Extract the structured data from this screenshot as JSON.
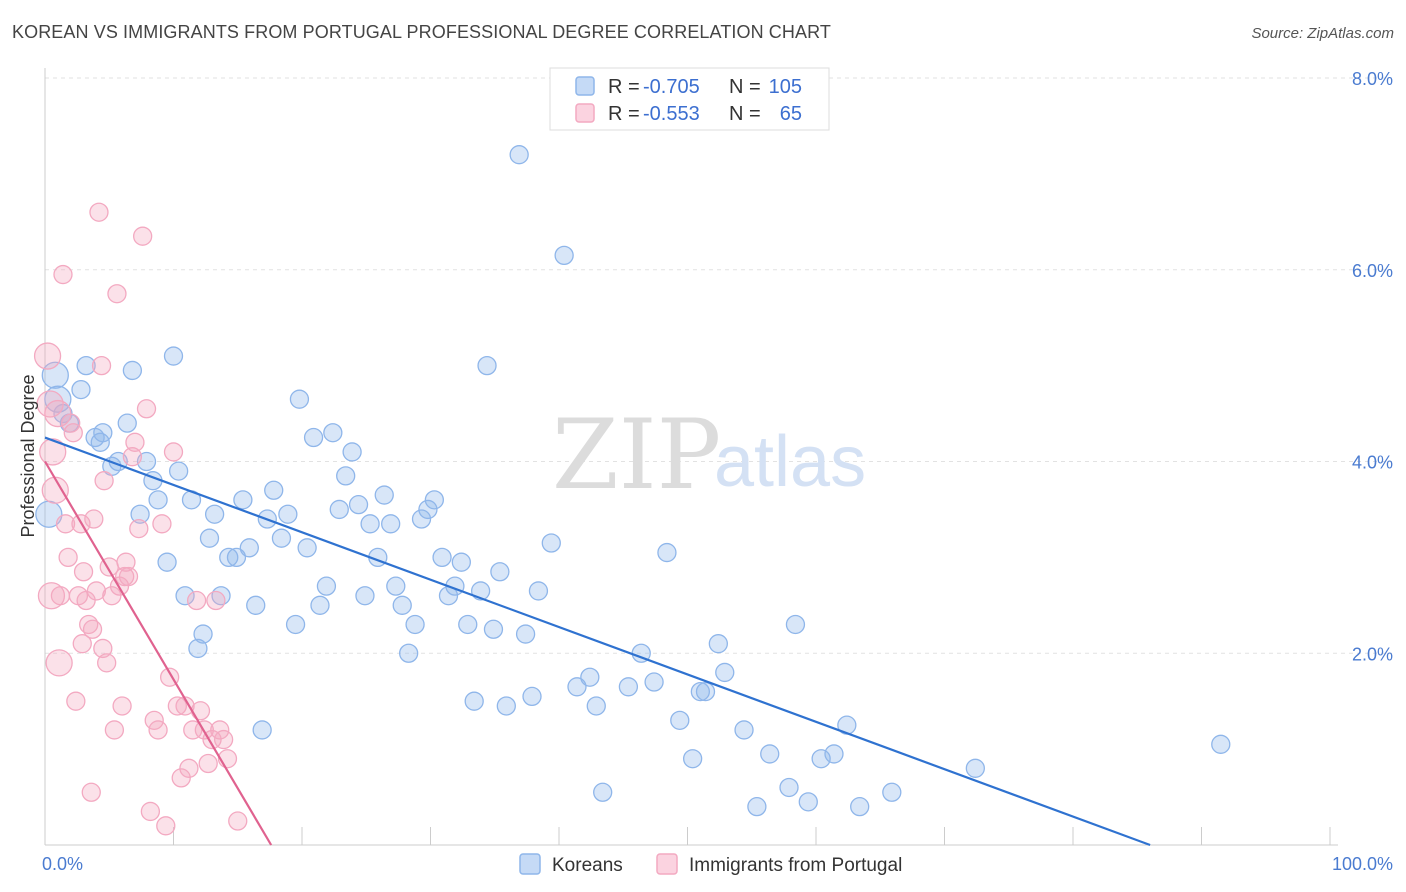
{
  "title": "KOREAN VS IMMIGRANTS FROM PORTUGAL PROFESSIONAL DEGREE CORRELATION CHART",
  "source": "Source: ZipAtlas.com",
  "watermark": {
    "zip": "ZIP",
    "atlas": "atlas"
  },
  "legend_stats": [
    {
      "r_label": "R = ",
      "r_value": "-0.705",
      "n_label": "N = ",
      "n_value": "105",
      "color": "#a9c8f0"
    },
    {
      "r_label": "R = ",
      "r_value": "-0.553",
      "n_label": "N = ",
      "n_value": "65",
      "color": "#f5b8cc"
    }
  ],
  "chart_data": {
    "type": "scatter",
    "xlabel": "",
    "ylabel": "Professional Degree",
    "xlim": [
      0,
      100
    ],
    "ylim": [
      0,
      8.0
    ],
    "x_ticks": [
      {
        "value": 0,
        "label": "0.0%"
      },
      {
        "value": 100,
        "label": "100.0%"
      }
    ],
    "y_ticks": [
      {
        "value": 2,
        "label": "2.0%"
      },
      {
        "value": 4,
        "label": "4.0%"
      },
      {
        "value": 6,
        "label": "6.0%"
      },
      {
        "value": 8,
        "label": "8.0%"
      }
    ],
    "grid": true,
    "series": [
      {
        "name": "Koreans",
        "color": "#8fb6ea",
        "line_color": "#2f72d0",
        "trend": {
          "x": [
            0,
            86
          ],
          "y": [
            4.25,
            0.0
          ]
        },
        "points": [
          [
            0.3,
            3.45
          ],
          [
            0.8,
            4.9
          ],
          [
            1.0,
            4.65
          ],
          [
            1.4,
            4.5
          ],
          [
            1.9,
            4.4
          ],
          [
            2.8,
            4.75
          ],
          [
            3.2,
            5.0
          ],
          [
            3.9,
            4.25
          ],
          [
            4.3,
            4.2
          ],
          [
            4.5,
            4.3
          ],
          [
            5.2,
            3.95
          ],
          [
            5.7,
            4.0
          ],
          [
            6.4,
            4.4
          ],
          [
            6.8,
            4.95
          ],
          [
            7.4,
            3.45
          ],
          [
            7.9,
            4.0
          ],
          [
            8.4,
            3.8
          ],
          [
            8.8,
            3.6
          ],
          [
            9.5,
            2.95
          ],
          [
            10.0,
            5.1
          ],
          [
            10.4,
            3.9
          ],
          [
            10.9,
            2.6
          ],
          [
            11.4,
            3.6
          ],
          [
            11.9,
            2.05
          ],
          [
            12.3,
            2.2
          ],
          [
            12.8,
            3.2
          ],
          [
            13.2,
            3.45
          ],
          [
            13.7,
            2.6
          ],
          [
            14.3,
            3.0
          ],
          [
            14.9,
            3.0
          ],
          [
            15.4,
            3.6
          ],
          [
            15.9,
            3.1
          ],
          [
            16.4,
            2.5
          ],
          [
            16.9,
            1.2
          ],
          [
            17.3,
            3.4
          ],
          [
            17.8,
            3.7
          ],
          [
            18.4,
            3.2
          ],
          [
            18.9,
            3.45
          ],
          [
            19.5,
            2.3
          ],
          [
            19.8,
            4.65
          ],
          [
            20.4,
            3.1
          ],
          [
            20.9,
            4.25
          ],
          [
            21.4,
            2.5
          ],
          [
            21.9,
            2.7
          ],
          [
            22.4,
            4.3
          ],
          [
            22.9,
            3.5
          ],
          [
            23.4,
            3.85
          ],
          [
            23.9,
            4.1
          ],
          [
            24.4,
            3.55
          ],
          [
            24.9,
            2.6
          ],
          [
            25.3,
            3.35
          ],
          [
            25.9,
            3.0
          ],
          [
            26.4,
            3.65
          ],
          [
            26.9,
            3.35
          ],
          [
            27.3,
            2.7
          ],
          [
            27.8,
            2.5
          ],
          [
            28.3,
            2.0
          ],
          [
            28.8,
            2.3
          ],
          [
            29.3,
            3.4
          ],
          [
            29.8,
            3.5
          ],
          [
            30.3,
            3.6
          ],
          [
            30.9,
            3.0
          ],
          [
            31.4,
            2.6
          ],
          [
            31.9,
            2.7
          ],
          [
            32.4,
            2.95
          ],
          [
            32.9,
            2.3
          ],
          [
            33.4,
            1.5
          ],
          [
            33.9,
            2.65
          ],
          [
            34.4,
            5.0
          ],
          [
            34.9,
            2.25
          ],
          [
            35.4,
            2.85
          ],
          [
            35.9,
            1.45
          ],
          [
            36.9,
            7.2
          ],
          [
            37.4,
            2.2
          ],
          [
            37.9,
            1.55
          ],
          [
            38.4,
            2.65
          ],
          [
            39.4,
            3.15
          ],
          [
            40.4,
            6.15
          ],
          [
            41.4,
            1.65
          ],
          [
            42.4,
            1.75
          ],
          [
            42.9,
            1.45
          ],
          [
            43.4,
            0.55
          ],
          [
            45.4,
            1.65
          ],
          [
            46.4,
            2.0
          ],
          [
            47.4,
            1.7
          ],
          [
            48.4,
            3.05
          ],
          [
            49.4,
            1.3
          ],
          [
            50.4,
            0.9
          ],
          [
            51.0,
            1.6
          ],
          [
            51.4,
            1.6
          ],
          [
            52.4,
            2.1
          ],
          [
            52.9,
            1.8
          ],
          [
            54.4,
            1.2
          ],
          [
            55.4,
            0.4
          ],
          [
            56.4,
            0.95
          ],
          [
            57.9,
            0.6
          ],
          [
            58.4,
            2.3
          ],
          [
            59.4,
            0.45
          ],
          [
            60.4,
            0.9
          ],
          [
            61.4,
            0.95
          ],
          [
            62.4,
            1.25
          ],
          [
            63.4,
            0.4
          ],
          [
            65.9,
            0.55
          ],
          [
            72.4,
            0.8
          ],
          [
            91.5,
            1.05
          ]
        ]
      },
      {
        "name": "Immigrants from Portugal",
        "color": "#f3a9c1",
        "line_color": "#e0628f",
        "trend": {
          "x": [
            0,
            17.6
          ],
          "y": [
            4.0,
            0.0
          ]
        },
        "points": [
          [
            0.2,
            5.1
          ],
          [
            0.4,
            4.6
          ],
          [
            0.6,
            4.1
          ],
          [
            0.8,
            3.7
          ],
          [
            1.0,
            4.5
          ],
          [
            1.2,
            2.6
          ],
          [
            1.4,
            5.95
          ],
          [
            1.6,
            3.35
          ],
          [
            1.8,
            3.0
          ],
          [
            2.0,
            4.4
          ],
          [
            2.2,
            4.3
          ],
          [
            2.4,
            1.5
          ],
          [
            2.6,
            2.6
          ],
          [
            2.8,
            3.35
          ],
          [
            3.0,
            2.85
          ],
          [
            3.2,
            2.55
          ],
          [
            3.4,
            2.3
          ],
          [
            3.6,
            0.55
          ],
          [
            3.8,
            3.4
          ],
          [
            4.0,
            2.65
          ],
          [
            4.2,
            6.6
          ],
          [
            4.4,
            5.0
          ],
          [
            4.6,
            3.8
          ],
          [
            4.8,
            1.9
          ],
          [
            5.0,
            2.9
          ],
          [
            5.2,
            2.6
          ],
          [
            5.4,
            1.2
          ],
          [
            5.6,
            5.75
          ],
          [
            5.8,
            2.7
          ],
          [
            6.0,
            1.45
          ],
          [
            6.2,
            2.8
          ],
          [
            6.5,
            2.8
          ],
          [
            6.8,
            4.05
          ],
          [
            7.0,
            4.2
          ],
          [
            7.3,
            3.3
          ],
          [
            7.6,
            6.35
          ],
          [
            7.9,
            4.55
          ],
          [
            8.2,
            0.35
          ],
          [
            8.5,
            1.3
          ],
          [
            8.8,
            1.2
          ],
          [
            9.1,
            3.35
          ],
          [
            9.4,
            0.2
          ],
          [
            9.7,
            1.75
          ],
          [
            10.0,
            4.1
          ],
          [
            10.3,
            1.45
          ],
          [
            10.6,
            0.7
          ],
          [
            10.9,
            1.45
          ],
          [
            11.2,
            0.8
          ],
          [
            11.5,
            1.2
          ],
          [
            11.8,
            2.55
          ],
          [
            12.1,
            1.4
          ],
          [
            12.4,
            1.2
          ],
          [
            12.7,
            0.85
          ],
          [
            13.0,
            1.1
          ],
          [
            13.3,
            2.55
          ],
          [
            13.6,
            1.2
          ],
          [
            13.9,
            1.1
          ],
          [
            14.2,
            0.9
          ],
          [
            15.0,
            0.25
          ],
          [
            6.3,
            2.95
          ],
          [
            4.5,
            2.05
          ],
          [
            3.7,
            2.25
          ],
          [
            2.9,
            2.1
          ],
          [
            0.5,
            2.6
          ],
          [
            1.1,
            1.9
          ]
        ]
      }
    ],
    "legend_position": "top-center"
  }
}
